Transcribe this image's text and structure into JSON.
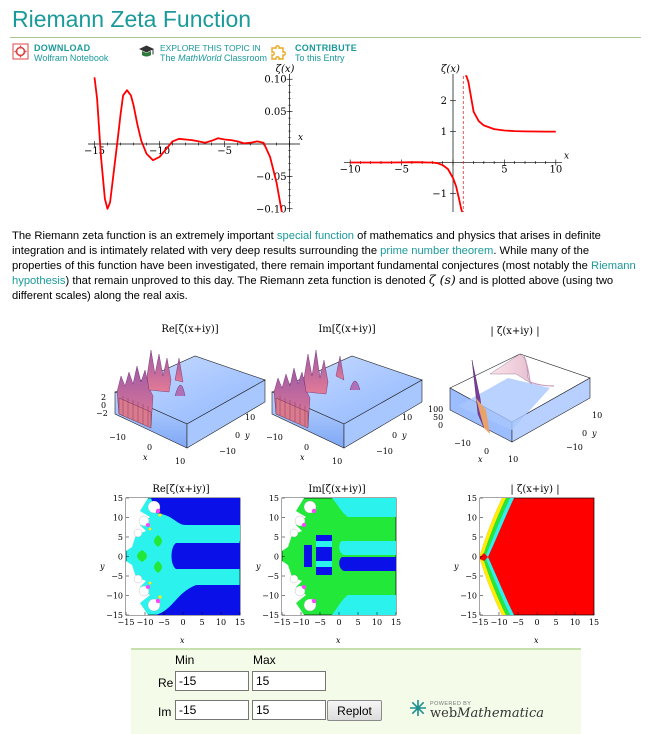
{
  "page_title": "Riemann Zeta Function",
  "toolbar": {
    "download": {
      "line1": "DOWNLOAD",
      "line2": "Wolfram Notebook",
      "icon": "notebook-icon"
    },
    "explore": {
      "line1": "EXPLORE THIS TOPIC IN",
      "line2_pre": "The ",
      "line2_em": "MathWorld",
      "line2_post": " Classroom",
      "icon": "graduation-cap-icon"
    },
    "contribute": {
      "line1": "CONTRIBUTE",
      "line2": "To this Entry",
      "icon": "puzzle-piece-icon"
    }
  },
  "chart_data": [
    {
      "type": "line",
      "ylabel": "ζ(x)",
      "xlabel": "x",
      "xlim": [
        -15.5,
        0.8
      ],
      "ylim": [
        -0.105,
        0.105
      ],
      "x_ticks": [
        "−15",
        "−10",
        "−5"
      ],
      "y_ticks": [
        "0.10",
        "0.05",
        "−0.05",
        "−0.10"
      ],
      "series_color": "#ff0000",
      "x": [
        -15,
        -14.8,
        -14.5,
        -14.2,
        -14.0,
        -13.8,
        -13.5,
        -13.2,
        -13.0,
        -12.8,
        -12.5,
        -12.2,
        -12.0,
        -11.7,
        -11.4,
        -11.0,
        -10.5,
        -10.0,
        -9.5,
        -9.0,
        -8.5,
        -8.0,
        -7.5,
        -7.0,
        -6.5,
        -6.0,
        -5.5,
        -5.0,
        -4.5,
        -4.0,
        -3.5,
        -3.0,
        -2.5,
        -2.0,
        -1.5,
        -1.0,
        -0.6
      ],
      "y": [
        0.103,
        0.07,
        -0.02,
        -0.085,
        -0.1,
        -0.09,
        -0.04,
        0.01,
        0.045,
        0.075,
        0.083,
        0.075,
        0.06,
        0.03,
        0.005,
        -0.015,
        -0.025,
        -0.02,
        -0.008,
        0.004,
        0.008,
        0.007,
        0.006,
        0.004,
        0.002,
        0.005,
        0.009,
        0.007,
        0.006,
        0.004,
        0.001,
        0.002,
        0.004,
        0.002,
        -0.02,
        -0.06,
        -0.105
      ]
    },
    {
      "type": "line",
      "ylabel": "ζ(x)",
      "xlabel": "x",
      "xlim": [
        -10.6,
        10.6
      ],
      "ylim": [
        -1.6,
        2.8
      ],
      "x_ticks": [
        "−10",
        "−5",
        "5",
        "10"
      ],
      "y_ticks": [
        "2",
        "1",
        "−1"
      ],
      "asymptote_x": 1,
      "series_color": "#ff0000",
      "branches": [
        {
          "x": [
            -10,
            -8,
            -6,
            -5,
            -4,
            -3,
            -2.5,
            -2,
            -1.5,
            -1,
            -0.5,
            0,
            0.3,
            0.6,
            0.8,
            0.9
          ],
          "y": [
            0,
            0,
            0,
            0.004,
            0.01,
            0.008,
            0.0,
            0.0,
            -0.02,
            -0.083,
            -0.208,
            -0.5,
            -0.77,
            -1.2,
            -1.5,
            -1.6
          ]
        },
        {
          "x": [
            1.2,
            1.3,
            1.5,
            2,
            2.5,
            3,
            4,
            5,
            6,
            7,
            8,
            9,
            10
          ],
          "y": [
            2.8,
            3.93,
            2.61,
            1.645,
            1.341,
            1.202,
            1.082,
            1.037,
            1.017,
            1.008,
            1.004,
            1.002,
            1.001
          ]
        }
      ]
    }
  ],
  "paragraph": {
    "t1": "The Riemann zeta function is an extremely important ",
    "link1": "special function",
    "t2": " of mathematics and physics that arises in definite integration and is intimately related with very deep results surrounding the ",
    "link2": "prime number theorem",
    "t3": ". While many of the properties of this function have been investigated, there remain important fundamental conjectures (most notably the ",
    "link3": "Riemann hypothesis",
    "t4": ") that remain unproved to this day. The Riemann zeta function is denoted ",
    "symbol": "ζ (s)",
    "t5": " and is plotted above (using two different scales) along the real axis."
  },
  "surface_plots": {
    "titles": [
      "Re[ζ(x+iy)]",
      "Im[ζ(x+iy)]",
      "| ζ(x+iy) |"
    ],
    "z_ticks_a": [
      "2",
      "0",
      "−2"
    ],
    "z_ticks_c": [
      "100",
      "50",
      "0"
    ],
    "x_ticks": [
      "−10",
      "0",
      "10"
    ],
    "y_ticks": [
      "10",
      "0",
      "−10"
    ],
    "xlabel": "x",
    "ylabel": "y"
  },
  "density_plots": {
    "titles": [
      "Re[ζ(x+iy)]",
      "Im[ζ(x+iy)]",
      "| ζ(x+iy) |"
    ],
    "ticks": [
      "15",
      "10",
      "5",
      "0",
      "−5",
      "−10",
      "−15"
    ],
    "x_ticks": [
      "−15",
      "−10",
      "−5",
      "0",
      "5",
      "10",
      "15"
    ],
    "xlabel": "x",
    "ylabel": "y"
  },
  "controls": {
    "col_min": "Min",
    "col_max": "Max",
    "re_label": "Re",
    "im_label": "Im",
    "re_min": "-15",
    "re_max": "15",
    "im_min": "-15",
    "im_max": "15",
    "replot_label": "Replot"
  },
  "webmathematica": {
    "powered_by": "POWERED BY",
    "brand_pre": "web",
    "brand_em": "Mathematica"
  },
  "colors": {
    "accent": "#1b9a9b",
    "curve": "#ff0000",
    "density_blue": "#0a10e8",
    "density_cyan": "#2cf2ee",
    "density_green": "#22e83a",
    "density_red": "#ff0000"
  }
}
